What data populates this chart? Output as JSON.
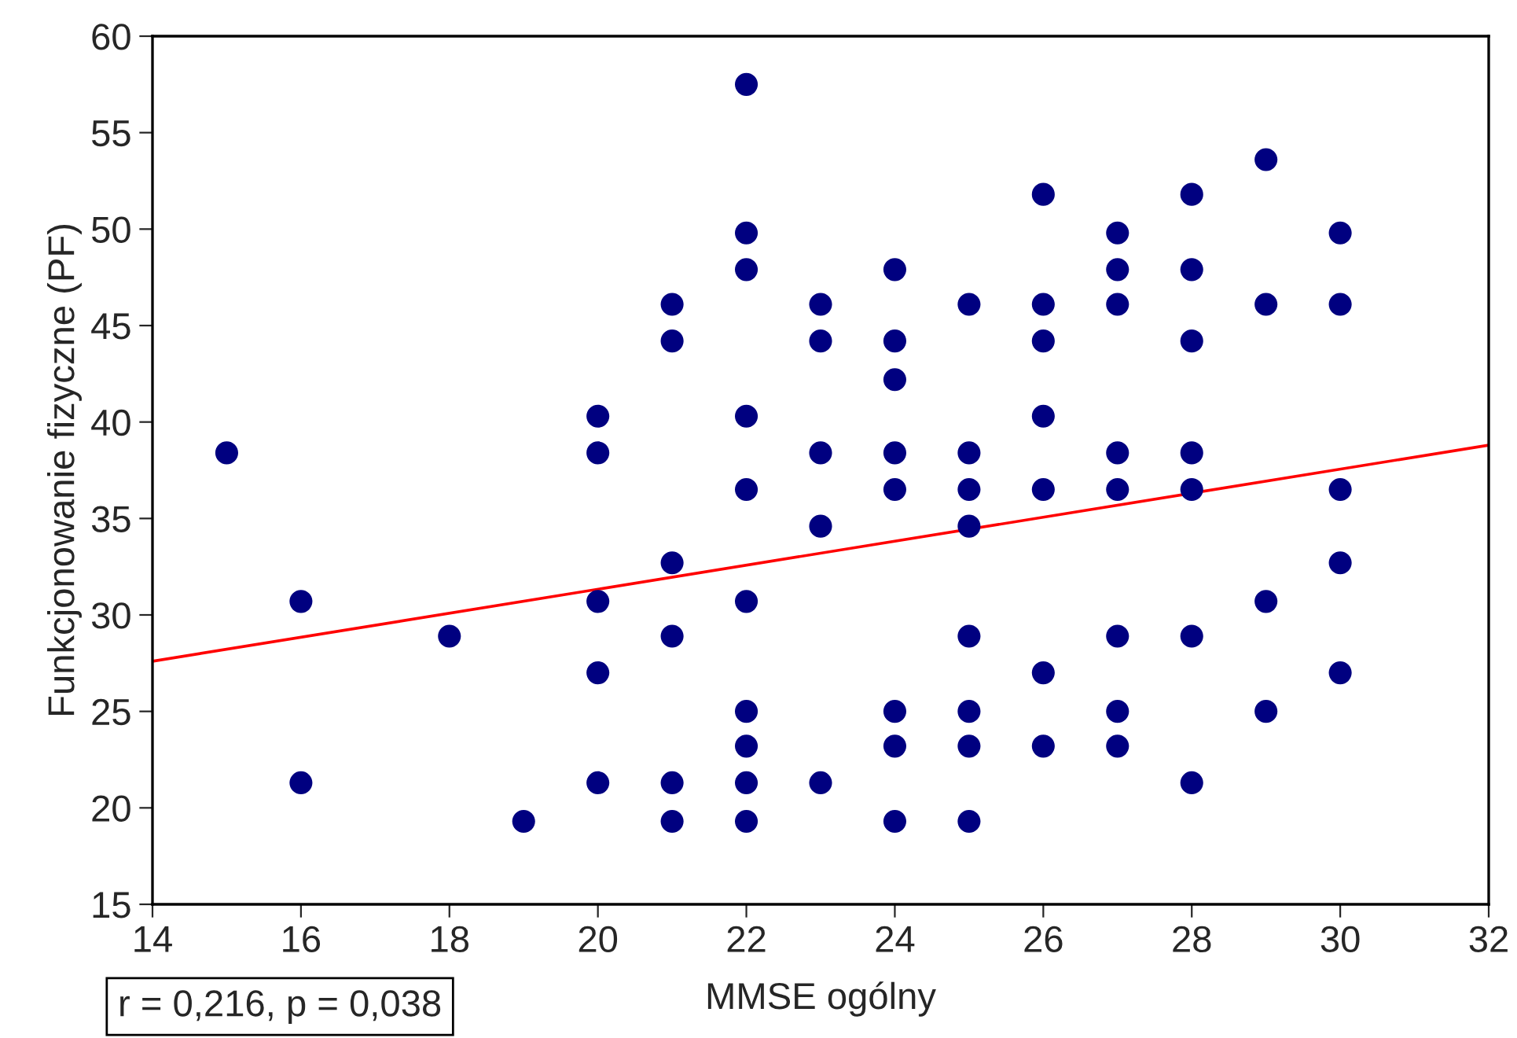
{
  "chart_data": {
    "type": "scatter",
    "xlabel": "MMSE ogólny",
    "ylabel": "Funkcjonowanie fizyczne (PF)",
    "series": [
      {
        "color": "#000080",
        "marker": "circle",
        "x": [
          15,
          16,
          16,
          18,
          19,
          20,
          20,
          20,
          20,
          20,
          21,
          21,
          21,
          21,
          21,
          21,
          22,
          22,
          22,
          22,
          22,
          22,
          22,
          22,
          22,
          22,
          23,
          23,
          23,
          23,
          23,
          24,
          24,
          24,
          24,
          24,
          24,
          24,
          24,
          25,
          25,
          25,
          25,
          25,
          25,
          25,
          25,
          26,
          26,
          26,
          26,
          26,
          26,
          26,
          27,
          27,
          27,
          27,
          27,
          27,
          27,
          27,
          28,
          28,
          28,
          28,
          28,
          28,
          28,
          29,
          29,
          29,
          29,
          30,
          30,
          30,
          30,
          30
        ],
        "values": [
          38.4,
          30.7,
          21.3,
          28.9,
          19.3,
          40.3,
          38.4,
          30.7,
          27.0,
          21.3,
          46.1,
          44.2,
          32.7,
          28.9,
          21.3,
          19.3,
          57.5,
          49.8,
          47.9,
          40.3,
          36.5,
          30.7,
          25.0,
          23.2,
          21.3,
          19.3,
          46.1,
          44.2,
          38.4,
          34.6,
          21.3,
          47.9,
          44.2,
          42.2,
          38.4,
          36.5,
          25.0,
          23.2,
          19.3,
          46.1,
          38.4,
          36.5,
          34.6,
          28.9,
          25.0,
          23.2,
          19.3,
          51.8,
          46.1,
          44.2,
          40.3,
          36.5,
          27.0,
          23.2,
          49.8,
          47.9,
          46.1,
          38.4,
          36.5,
          28.9,
          25.0,
          23.2,
          51.8,
          47.9,
          44.2,
          38.4,
          36.5,
          28.9,
          21.3,
          53.6,
          46.1,
          30.7,
          25.0,
          49.8,
          46.1,
          36.5,
          32.7,
          27.0
        ]
      },
      {
        "type": "line",
        "color": "#ff0000",
        "line_style": "solid",
        "marker": "none",
        "x": [
          14,
          32
        ],
        "values": [
          27.6,
          38.8
        ]
      }
    ],
    "xlim": [
      14,
      32
    ],
    "xticks": [
      14,
      16,
      18,
      20,
      22,
      24,
      26,
      28,
      30,
      32
    ],
    "ylim": [
      15,
      60
    ],
    "yticks": [
      15,
      20,
      25,
      30,
      35,
      40,
      45,
      50,
      55,
      60
    ],
    "grid": false,
    "legend": false,
    "annotations": [
      "r = 0,216, p = 0,038"
    ]
  }
}
